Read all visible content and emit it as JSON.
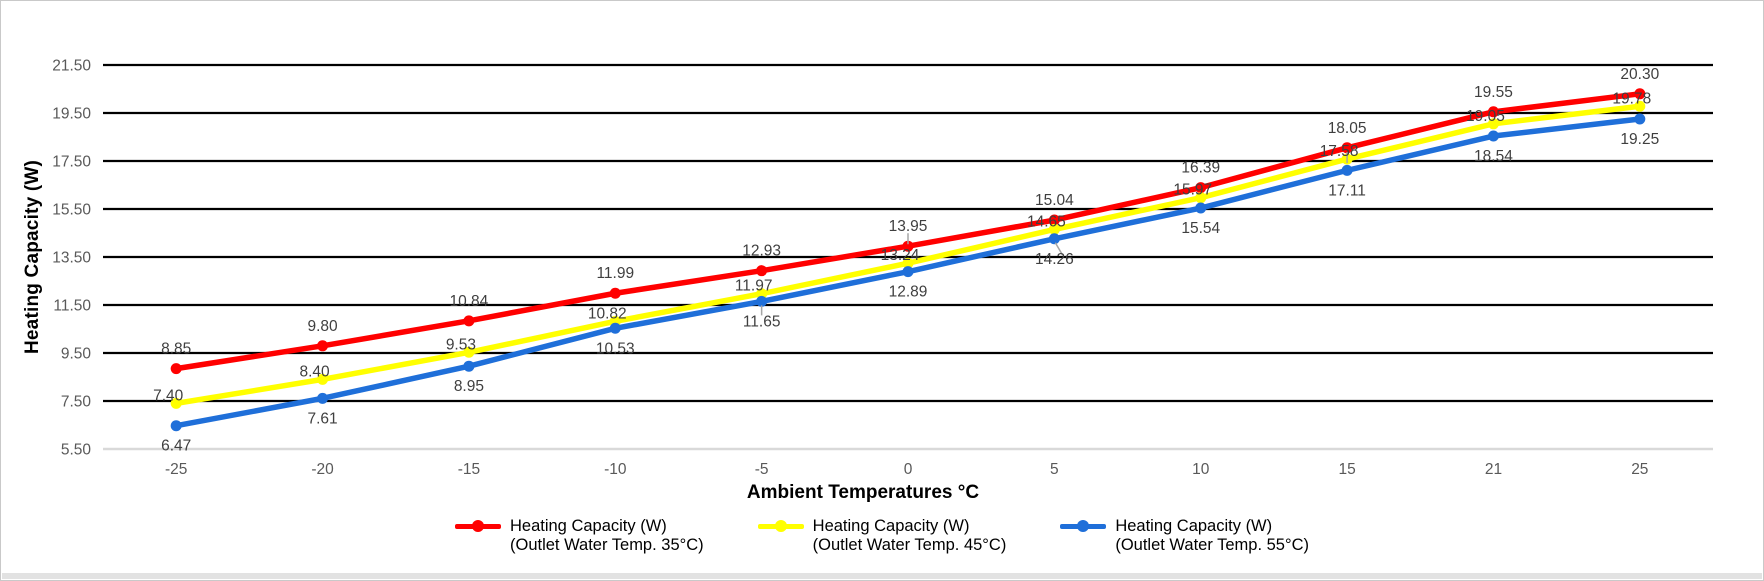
{
  "chart_data": {
    "type": "line",
    "title": "",
    "xlabel": "Ambient Temperatures °C",
    "ylabel": "Heating Capacity (W)",
    "categories": [
      "-25",
      "-20",
      "-15",
      "-10",
      "-5",
      "0",
      "5",
      "10",
      "15",
      "21",
      "25"
    ],
    "y_ticks": [
      "21.50",
      "19.50",
      "17.50",
      "15.50",
      "13.50",
      "11.50",
      "9.50",
      "7.50",
      "5.50"
    ],
    "ylim": [
      5.5,
      21.5
    ],
    "grid": "horizontal-on",
    "legend_position": "bottom",
    "axis_colors": {
      "gridline": "#000000",
      "baseline": "#d9d9d9",
      "tick_label": "#595959",
      "data_label": "#3f3f3f",
      "leader": "#a6a6a6"
    },
    "series": [
      {
        "name": "Heating Capacity (W) (Outlet Water Temp. 35°C)",
        "legend": [
          "Heating Capacity (W)",
          "(Outlet Water Temp. 35°C)"
        ],
        "color": "#ff0000",
        "values": [
          8.85,
          9.8,
          10.84,
          11.99,
          12.93,
          13.95,
          15.04,
          16.39,
          18.05,
          19.55,
          20.3
        ],
        "labels": [
          "8.85",
          "9.80",
          "10.84",
          "11.99",
          "12.93",
          "13.95",
          "15.04",
          "16.39",
          "18.05",
          "19.55",
          "20.30"
        ],
        "label_placement": "above"
      },
      {
        "name": "Heating Capacity (W) (Outlet Water Temp. 45°C)",
        "legend": [
          "Heating Capacity (W)",
          "(Outlet Water Temp. 45°C)"
        ],
        "color": "#ffff00",
        "values": [
          7.4,
          8.4,
          9.53,
          10.82,
          11.97,
          13.24,
          14.65,
          15.97,
          17.58,
          19.05,
          19.78
        ],
        "labels": [
          "7.40",
          "8.40",
          "9.53",
          "10.82",
          "11.97",
          "13.24",
          "14.65",
          "15.97",
          "17.58",
          "19.05",
          "19.78"
        ],
        "label_placement": "near"
      },
      {
        "name": "Heating Capacity (W) (Outlet Water Temp. 55°C)",
        "legend": [
          "Heating Capacity (W)",
          "(Outlet Water Temp. 55°C)"
        ],
        "color": "#1f6fd9",
        "values": [
          6.47,
          7.61,
          8.95,
          10.53,
          11.65,
          12.89,
          14.26,
          15.54,
          17.11,
          18.54,
          19.25
        ],
        "labels": [
          "6.47",
          "7.61",
          "8.95",
          "10.53",
          "11.65",
          "12.89",
          "14.26",
          "15.54",
          "17.11",
          "18.54",
          "19.25"
        ],
        "label_placement": "below"
      }
    ]
  }
}
